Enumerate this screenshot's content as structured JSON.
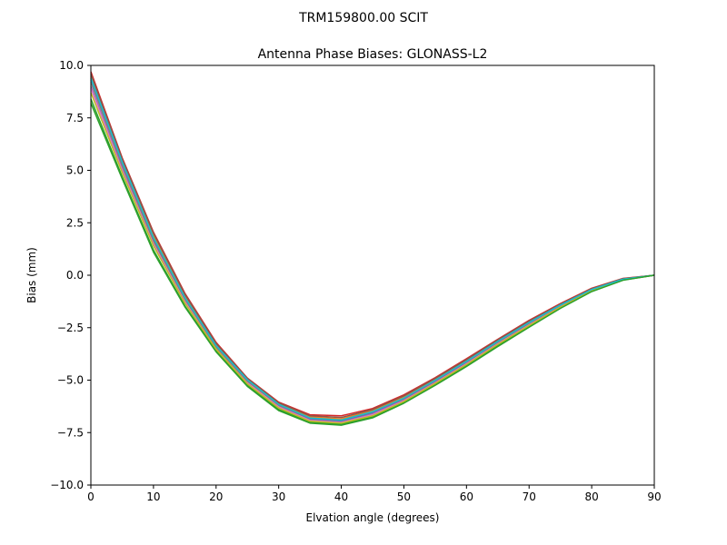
{
  "chart_data": {
    "type": "line",
    "suptitle": "TRM159800.00    SCIT",
    "title": "Antenna Phase Biases: GLONASS-L2",
    "xlabel": "Elvation angle (degrees)",
    "ylabel": "Bias (mm)",
    "xlim": [
      0,
      90
    ],
    "ylim": [
      -10,
      10
    ],
    "xticks": [
      0,
      10,
      20,
      30,
      40,
      50,
      60,
      70,
      80,
      90
    ],
    "yticks": [
      -10.0,
      -7.5,
      -5.0,
      -2.5,
      0.0,
      2.5,
      5.0,
      7.5,
      10.0
    ],
    "xtick_labels": [
      "0",
      "10",
      "20",
      "30",
      "40",
      "50",
      "60",
      "70",
      "80",
      "90"
    ],
    "ytick_labels": [
      "−10.0",
      "−7.5",
      "−5.0",
      "−2.5",
      "0.0",
      "2.5",
      "5.0",
      "7.5",
      "10.0"
    ],
    "grid": false,
    "x": [
      0,
      5,
      10,
      15,
      20,
      25,
      30,
      35,
      40,
      45,
      50,
      55,
      60,
      65,
      70,
      75,
      80,
      85,
      90
    ],
    "series": [
      {
        "color": "#1f77b4",
        "values": [
          9.3,
          5.3,
          1.7,
          -1.1,
          -3.4,
          -5.0,
          -6.2,
          -6.85,
          -6.95,
          -6.55,
          -5.9,
          -5.05,
          -4.15,
          -3.2,
          -2.3,
          -1.45,
          -0.7,
          -0.2,
          0.0
        ]
      },
      {
        "color": "#ff7f0e",
        "values": [
          9.5,
          5.5,
          1.9,
          -0.95,
          -3.3,
          -4.95,
          -6.1,
          -6.75,
          -6.85,
          -6.45,
          -5.8,
          -4.95,
          -4.05,
          -3.12,
          -2.22,
          -1.4,
          -0.66,
          -0.18,
          0.0
        ]
      },
      {
        "color": "#2ca02c",
        "values": [
          8.4,
          4.7,
          1.2,
          -1.45,
          -3.6,
          -5.25,
          -6.4,
          -7.0,
          -7.1,
          -6.75,
          -6.05,
          -5.2,
          -4.3,
          -3.35,
          -2.45,
          -1.55,
          -0.77,
          -0.23,
          0.0
        ]
      },
      {
        "color": "#d62728",
        "values": [
          9.7,
          5.6,
          2.05,
          -0.85,
          -3.2,
          -4.9,
          -6.05,
          -6.65,
          -6.7,
          -6.35,
          -5.7,
          -4.88,
          -3.98,
          -3.05,
          -2.15,
          -1.35,
          -0.62,
          -0.15,
          0.0
        ]
      },
      {
        "color": "#9467bd",
        "values": [
          9.0,
          5.1,
          1.55,
          -1.2,
          -3.45,
          -5.1,
          -6.25,
          -6.9,
          -7.0,
          -6.6,
          -5.95,
          -5.1,
          -4.2,
          -3.25,
          -2.35,
          -1.48,
          -0.72,
          -0.21,
          0.0
        ]
      },
      {
        "color": "#8c564b",
        "values": [
          9.6,
          5.55,
          2.0,
          -0.9,
          -3.25,
          -4.92,
          -6.08,
          -6.7,
          -6.78,
          -6.4,
          -5.75,
          -4.92,
          -4.02,
          -3.08,
          -2.18,
          -1.38,
          -0.64,
          -0.16,
          0.0
        ]
      },
      {
        "color": "#e377c2",
        "values": [
          8.9,
          5.0,
          1.5,
          -1.25,
          -3.5,
          -5.12,
          -6.28,
          -6.92,
          -7.02,
          -6.65,
          -5.98,
          -5.13,
          -4.22,
          -3.27,
          -2.37,
          -1.5,
          -0.73,
          -0.22,
          0.0
        ]
      },
      {
        "color": "#7f7f7f",
        "values": [
          9.2,
          5.25,
          1.65,
          -1.12,
          -3.42,
          -5.05,
          -6.18,
          -6.82,
          -6.92,
          -6.52,
          -5.88,
          -5.02,
          -4.12,
          -3.18,
          -2.28,
          -1.44,
          -0.69,
          -0.19,
          0.0
        ]
      },
      {
        "color": "#bcbd22",
        "values": [
          8.7,
          4.9,
          1.4,
          -1.32,
          -3.53,
          -5.18,
          -6.33,
          -6.96,
          -7.05,
          -6.7,
          -6.02,
          -5.16,
          -4.26,
          -3.3,
          -2.4,
          -1.52,
          -0.75,
          -0.22,
          0.0
        ]
      },
      {
        "color": "#17becf",
        "values": [
          9.4,
          5.4,
          1.8,
          -1.05,
          -3.35,
          -4.98,
          -6.15,
          -6.8,
          -6.9,
          -6.5,
          -5.85,
          -5.0,
          -4.1,
          -3.15,
          -2.25,
          -1.42,
          -0.68,
          -0.19,
          0.0
        ]
      },
      {
        "color": "#2ca02c",
        "values": [
          8.2,
          4.6,
          1.1,
          -1.5,
          -3.65,
          -5.3,
          -6.45,
          -7.05,
          -7.15,
          -6.8,
          -6.1,
          -5.25,
          -4.35,
          -3.4,
          -2.48,
          -1.58,
          -0.78,
          -0.24,
          0.0
        ]
      }
    ]
  }
}
